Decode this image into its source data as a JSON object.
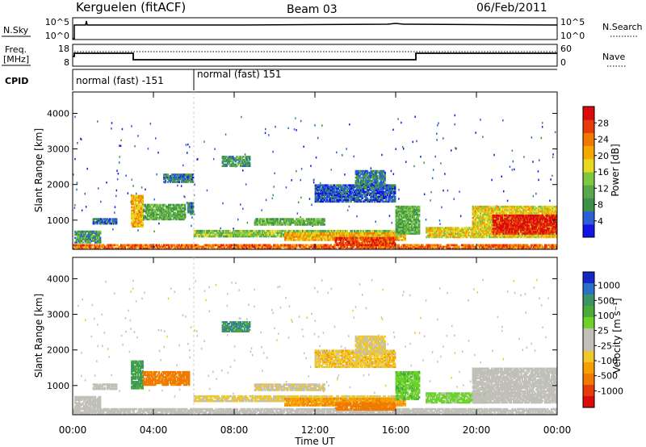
{
  "header": {
    "station": "Kerguelen (fitACF)",
    "beam": "Beam 03",
    "date": "06/Feb/2011"
  },
  "top_panels": {
    "nsky": {
      "label": "N.Sky",
      "ticks": [
        "10^5",
        "10^0"
      ],
      "right_label": "N.Search",
      "right_ticks": [
        "10^5",
        "10^0"
      ]
    },
    "freq": {
      "label_line1": "Freq.",
      "label_line2": "[MHz]",
      "ticks": [
        "18",
        "8"
      ],
      "right_label": "Nave",
      "right_ticks": [
        "60",
        "0"
      ]
    },
    "cpid": {
      "label": "CPID",
      "programs": [
        {
          "name": "normal (fast) -151",
          "start_hour": 0
        },
        {
          "name": "normal (fast) 151",
          "start_hour": 6
        }
      ]
    }
  },
  "chart_data": [
    {
      "type": "heatmap",
      "title": "",
      "xlabel": "Time UT",
      "ylabel": "Slant Range [km]",
      "ylim": [
        180,
        4600
      ],
      "xlim": [
        0,
        24
      ],
      "x_ticks": [
        "00:00",
        "04:00",
        "08:00",
        "12:00",
        "16:00",
        "20:00",
        "00:00"
      ],
      "y_ticks": [
        1000,
        2000,
        3000,
        4000
      ],
      "colorbar": {
        "label": "Power [dB]",
        "ticks": [
          4,
          8,
          12,
          16,
          20,
          24,
          28
        ],
        "colors": [
          "#1414e6",
          "#2a5fd6",
          "#3b9146",
          "#5aa64a",
          "#7ec840",
          "#e8d820",
          "#f5a800",
          "#f07a00",
          "#e83a0a",
          "#dc0a0a"
        ]
      },
      "regions": [
        {
          "t": [
            0,
            24
          ],
          "r": [
            180,
            320
          ],
          "v": 24
        },
        {
          "t": [
            0.1,
            1.4
          ],
          "r": [
            350,
            700
          ],
          "v": 10
        },
        {
          "t": [
            1.0,
            2.2
          ],
          "r": [
            880,
            1050
          ],
          "v": 6
        },
        {
          "t": [
            2.9,
            3.5
          ],
          "r": [
            800,
            1700
          ],
          "v": 20
        },
        {
          "t": [
            3.5,
            5.6
          ],
          "r": [
            1000,
            1450
          ],
          "v": 12
        },
        {
          "t": [
            5.7,
            6.0
          ],
          "r": [
            1150,
            1500
          ],
          "v": 8
        },
        {
          "t": [
            4.5,
            6.0
          ],
          "r": [
            2050,
            2300
          ],
          "v": 8
        },
        {
          "t": [
            7.4,
            8.8
          ],
          "r": [
            2500,
            2800
          ],
          "v": 10
        },
        {
          "t": [
            6.0,
            16.5
          ],
          "r": [
            520,
            720
          ],
          "v": 14
        },
        {
          "t": [
            9.0,
            12.5
          ],
          "r": [
            850,
            1050
          ],
          "v": 12
        },
        {
          "t": [
            10.5,
            16.5
          ],
          "r": [
            420,
            650
          ],
          "v": 20
        },
        {
          "t": [
            13.0,
            16.0
          ],
          "r": [
            280,
            520
          ],
          "v": 26
        },
        {
          "t": [
            12.0,
            16.0
          ],
          "r": [
            1500,
            2000
          ],
          "v": 6
        },
        {
          "t": [
            14.0,
            15.5
          ],
          "r": [
            1900,
            2400
          ],
          "v": 8
        },
        {
          "t": [
            16.0,
            17.2
          ],
          "r": [
            600,
            1400
          ],
          "v": 12
        },
        {
          "t": [
            17.5,
            20.0
          ],
          "r": [
            500,
            800
          ],
          "v": 18
        },
        {
          "t": [
            19.8,
            24.0
          ],
          "r": [
            500,
            1400
          ],
          "v": 18
        },
        {
          "t": [
            20.8,
            24.0
          ],
          "r": [
            600,
            1150
          ],
          "v": 28
        }
      ]
    },
    {
      "type": "heatmap",
      "title": "",
      "xlabel": "Time UT",
      "ylabel": "Slant Range [km]",
      "ylim": [
        180,
        4600
      ],
      "xlim": [
        0,
        24
      ],
      "x_ticks": [
        "00:00",
        "04:00",
        "08:00",
        "12:00",
        "16:00",
        "20:00",
        "00:00"
      ],
      "y_ticks": [
        1000,
        2000,
        3000,
        4000
      ],
      "colorbar": {
        "label": "Velocity [m s⁻¹]",
        "ticks": [
          "1000",
          "500",
          "100",
          "25",
          "-25",
          "-100",
          "-500",
          "-1000"
        ],
        "colors": [
          "#1428c8",
          "#2a6fc8",
          "#3c9464",
          "#4aaa3c",
          "#6ad228",
          "#c0c0b8",
          "#c0c0b8",
          "#f0c828",
          "#f5a000",
          "#f07a00",
          "#e83a0a",
          "#dc0a0a"
        ]
      },
      "regions": [
        {
          "t": [
            0,
            24
          ],
          "r": [
            180,
            360
          ],
          "v": 0
        },
        {
          "t": [
            0.1,
            1.4
          ],
          "r": [
            350,
            700
          ],
          "v": 10
        },
        {
          "t": [
            1.0,
            2.2
          ],
          "r": [
            880,
            1050
          ],
          "v": 0
        },
        {
          "t": [
            2.9,
            3.5
          ],
          "r": [
            900,
            1700
          ],
          "v": 300
        },
        {
          "t": [
            3.5,
            5.8
          ],
          "r": [
            1000,
            1400
          ],
          "v": -150
        },
        {
          "t": [
            7.4,
            8.8
          ],
          "r": [
            2500,
            2800
          ],
          "v": 400
        },
        {
          "t": [
            6.0,
            16.5
          ],
          "r": [
            540,
            720
          ],
          "v": -30
        },
        {
          "t": [
            9.0,
            12.5
          ],
          "r": [
            850,
            1050
          ],
          "v": -20
        },
        {
          "t": [
            10.5,
            16.5
          ],
          "r": [
            420,
            650
          ],
          "v": -80
        },
        {
          "t": [
            13.0,
            16.0
          ],
          "r": [
            300,
            520
          ],
          "v": -200
        },
        {
          "t": [
            12.0,
            16.0
          ],
          "r": [
            1500,
            2000
          ],
          "v": -40
        },
        {
          "t": [
            14.0,
            15.5
          ],
          "r": [
            1900,
            2400
          ],
          "v": -30
        },
        {
          "t": [
            16.0,
            17.2
          ],
          "r": [
            600,
            1400
          ],
          "v": 80
        },
        {
          "t": [
            17.5,
            20.5
          ],
          "r": [
            500,
            800
          ],
          "v": 60
        },
        {
          "t": [
            19.8,
            24.0
          ],
          "r": [
            500,
            1500
          ],
          "v": 0
        }
      ]
    }
  ]
}
